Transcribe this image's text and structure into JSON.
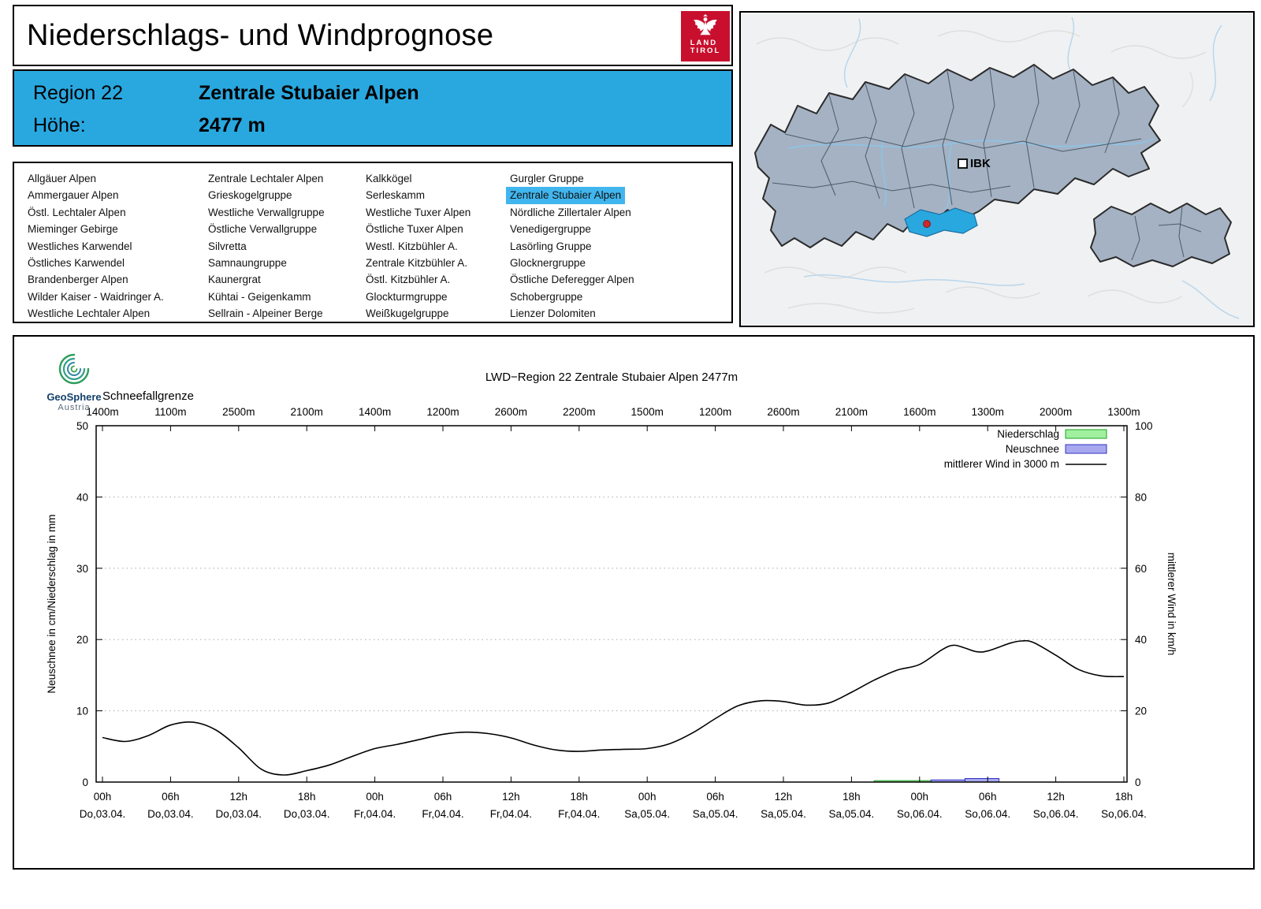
{
  "header": {
    "title": "Niederschlags- und Windprognose",
    "logo": {
      "line1": "LAND",
      "line2": "TIROL"
    }
  },
  "region_banner": {
    "region_label": "Region 22",
    "region_name": "Zentrale Stubaier Alpen",
    "elevation_label": "Höhe:",
    "elevation_value": "2477 m"
  },
  "region_list": {
    "selected": "Zentrale Stubaier Alpen",
    "columns": [
      [
        "Allgäuer Alpen",
        "Ammergauer Alpen",
        "Östl. Lechtaler Alpen",
        "Mieminger Gebirge",
        "Westliches Karwendel",
        "Östliches Karwendel",
        "Brandenberger Alpen",
        "Wilder Kaiser - Waidringer A.",
        "Westliche Lechtaler Alpen"
      ],
      [
        "Zentrale Lechtaler Alpen",
        "Grieskogelgruppe",
        "Westliche Verwallgruppe",
        "Östliche Verwallgruppe",
        "Silvretta",
        "Samnaungruppe",
        "Kaunergrat",
        "Kühtai - Geigenkamm",
        "Sellrain - Alpeiner Berge"
      ],
      [
        "Kalkkögel",
        "Serleskamm",
        "Westliche Tuxer Alpen",
        "Östliche Tuxer Alpen",
        "Westl. Kitzbühler A.",
        "Zentrale Kitzbühler A.",
        "Östl. Kitzbühler A.",
        "Glockturmgruppe",
        "Weißkugelgruppe"
      ],
      [
        "Gurgler Gruppe",
        "Zentrale Stubaier Alpen",
        "Nördliche Zillertaler Alpen",
        "Venedigergruppe",
        "Lasörling Gruppe",
        "Glocknergruppe",
        "Östliche Deferegger Alpen",
        "Schobergruppe",
        "Lienzer Dolomiten"
      ]
    ]
  },
  "map": {
    "marker_label": "IBK"
  },
  "chart_branding": {
    "name": "GeoSphere",
    "sub": "Austria"
  },
  "colors": {
    "banner_blue": "#29A8E0",
    "selected_highlight": "#41B6EE",
    "map_selected_region": "#29A8E0",
    "logo_red": "#C8102E"
  },
  "chart_data": {
    "type": "line",
    "title": "LWD−Region 22 Zentrale Stubaier Alpen 2477m",
    "snowline_label": "Schneefallgrenze",
    "snowline_values": [
      "1400m",
      "1100m",
      "2500m",
      "2100m",
      "1400m",
      "1200m",
      "2600m",
      "2200m",
      "1500m",
      "1200m",
      "2600m",
      "2100m",
      "1600m",
      "1300m",
      "2000m",
      "1300m"
    ],
    "ylabel_left": "Neuschnee in cm/Niederschlag in mm",
    "ylabel_right": "mittlerer Wind in km/h",
    "ylim_left": [
      0,
      50
    ],
    "ylim_right": [
      0,
      100
    ],
    "yticks_left": [
      0,
      10,
      20,
      30,
      40,
      50
    ],
    "yticks_right": [
      0,
      20,
      40,
      60,
      80,
      100
    ],
    "x_unit": "hours from Do,03.04. 00h",
    "x_range": [
      0,
      90
    ],
    "x_tick_hours": [
      0,
      6,
      12,
      18,
      24,
      30,
      36,
      42,
      48,
      54,
      60,
      66,
      72,
      78,
      84,
      90
    ],
    "x_tick_labels_hour": [
      "00h",
      "06h",
      "12h",
      "18h",
      "00h",
      "06h",
      "12h",
      "18h",
      "00h",
      "06h",
      "12h",
      "18h",
      "00h",
      "06h",
      "12h",
      "18h"
    ],
    "x_tick_labels_date": [
      "Do,03.04.",
      "Do,03.04.",
      "Do,03.04.",
      "Do,03.04.",
      "Fr,04.04.",
      "Fr,04.04.",
      "Fr,04.04.",
      "Fr,04.04.",
      "Sa,05.04.",
      "Sa,05.04.",
      "Sa,05.04.",
      "Sa,05.04.",
      "So,06.04.",
      "So,06.04.",
      "So,06.04.",
      "So,06.04."
    ],
    "grid": "horizontal-dotted",
    "legend_position": "top-right",
    "legend": [
      {
        "label": "Niederschlag",
        "type": "box",
        "fill": "#A0F0A0",
        "stroke": "#20A020"
      },
      {
        "label": "Neuschnee",
        "type": "box",
        "fill": "#A8A8F0",
        "stroke": "#3030C0"
      },
      {
        "label": "mittlerer Wind in 3000 m",
        "type": "line",
        "stroke": "#000000"
      }
    ],
    "series": [
      {
        "name": "Niederschlag",
        "type": "bar",
        "axis": "left",
        "unit": "mm",
        "fill": "#A0F0A0",
        "stroke": "#20A020",
        "segments": [
          {
            "from_h": 68,
            "to_h": 73,
            "value": 0.2
          }
        ]
      },
      {
        "name": "Neuschnee",
        "type": "bar",
        "axis": "left",
        "unit": "cm",
        "fill": "#A8A8F0",
        "stroke": "#3030C0",
        "segments": [
          {
            "from_h": 73,
            "to_h": 76,
            "value": 0.3
          },
          {
            "from_h": 76,
            "to_h": 79,
            "value": 0.5
          }
        ]
      },
      {
        "name": "mittlerer Wind in 3000 m",
        "type": "line",
        "axis": "right",
        "unit": "km/h",
        "stroke": "#000000",
        "x": [
          0,
          2,
          4,
          6,
          8,
          10,
          12,
          14,
          16,
          18,
          20,
          22,
          24,
          26,
          28,
          30,
          32,
          34,
          36,
          38,
          40,
          42,
          44,
          46,
          48,
          50,
          52,
          54,
          56,
          58,
          60,
          62,
          64,
          66,
          68,
          70,
          72,
          74,
          75,
          76,
          77,
          78,
          80,
          81,
          82,
          84,
          86,
          88,
          90
        ],
        "values": [
          12.5,
          11.4,
          13,
          16,
          16.8,
          14.6,
          9.6,
          3.6,
          2,
          3.2,
          4.8,
          7.2,
          9.4,
          10.6,
          12,
          13.4,
          14,
          13.6,
          12.4,
          10.4,
          9,
          8.6,
          9,
          9.2,
          9.4,
          10.8,
          13.8,
          17.8,
          21.4,
          22.8,
          22.6,
          21.6,
          22.2,
          25.2,
          28.6,
          31.4,
          33,
          37.2,
          38.4,
          37.6,
          36.6,
          36.8,
          39,
          39.6,
          39.2,
          35.6,
          31.6,
          29.8,
          29.6
        ]
      }
    ]
  }
}
